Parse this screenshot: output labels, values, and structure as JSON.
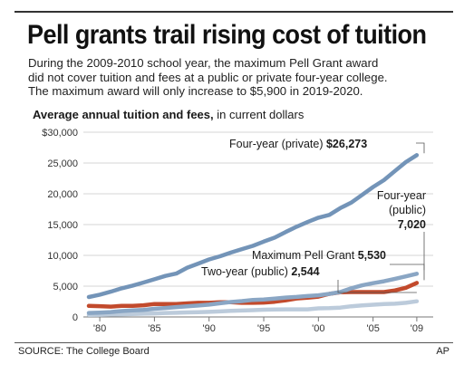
{
  "header": {
    "title": "Pell grants trail rising cost of tuition",
    "description_lines": [
      "During the 2009-2010 school year, the maximum Pell Grant award",
      "did not cover tuition and fees at a public or private four-year college.",
      "The maximum award will only increase to $5,900 in 2019-2020."
    ]
  },
  "chart_heading": {
    "bold": "Average annual tuition and fees,",
    "normal": " in current dollars"
  },
  "footer": {
    "source": "SOURCE: The College Board",
    "credit": "AP"
  },
  "colors": {
    "four_year_private": "#7394b8",
    "four_year_public": "#8aa6c4",
    "max_pell": "#c24a2c",
    "two_year_public": "#bccbdb",
    "grid": "#c8c8c8"
  },
  "chart_data": {
    "type": "line",
    "x_range": [
      1978.5,
      2010.5
    ],
    "ylim": [
      0,
      30000
    ],
    "y_ticks": [
      0,
      5000,
      10000,
      15000,
      20000,
      25000,
      30000
    ],
    "y_tick_labels": [
      "0",
      "5,000",
      "10,000",
      "15,000",
      "20,000",
      "25,000",
      "$30,000"
    ],
    "x_ticks": [
      1980,
      1985,
      1990,
      1995,
      2000,
      2005,
      2009
    ],
    "x_tick_labels": [
      "'80",
      "'85",
      "'90",
      "'95",
      "'00",
      "'05",
      "'09"
    ],
    "grid": "horizontal",
    "legend": "direct labels",
    "x": [
      1979,
      1980,
      1981,
      1982,
      1983,
      1984,
      1985,
      1986,
      1987,
      1988,
      1989,
      1990,
      1991,
      1992,
      1993,
      1994,
      1995,
      1996,
      1997,
      1998,
      1999,
      2000,
      2001,
      2002,
      2003,
      2004,
      2005,
      2006,
      2007,
      2008,
      2009
    ],
    "series": [
      {
        "name": "Four-year (private)",
        "end_label": "$26,273",
        "values": [
          3230,
          3620,
          4110,
          4640,
          5090,
          5590,
          6120,
          6660,
          7050,
          8000,
          8660,
          9340,
          9860,
          10450,
          11010,
          11550,
          12240,
          12880,
          13790,
          14650,
          15410,
          16120,
          16570,
          17680,
          18560,
          19830,
          21100,
          22220,
          23710,
          25140,
          26273
        ]
      },
      {
        "name": "Four-year (public)",
        "end_label": "7,020",
        "values": [
          650,
          700,
          800,
          950,
          1060,
          1140,
          1320,
          1460,
          1610,
          1730,
          1860,
          2000,
          2220,
          2420,
          2580,
          2770,
          2830,
          2980,
          3150,
          3250,
          3390,
          3510,
          3750,
          4050,
          4640,
          5130,
          5490,
          5800,
          6190,
          6590,
          7020
        ]
      },
      {
        "name": "Maximum Pell Grant",
        "end_label": "5,530",
        "values": [
          1800,
          1750,
          1670,
          1800,
          1800,
          1900,
          2100,
          2100,
          2100,
          2200,
          2300,
          2300,
          2400,
          2400,
          2300,
          2300,
          2340,
          2470,
          2700,
          3000,
          3125,
          3300,
          3750,
          4000,
          4050,
          4050,
          4050,
          4050,
          4310,
          4731,
          5530
        ]
      },
      {
        "name": "Two-year (public)",
        "end_label": "2,544",
        "values": [
          330,
          360,
          390,
          430,
          480,
          530,
          580,
          640,
          680,
          730,
          760,
          820,
          890,
          980,
          1050,
          1110,
          1170,
          1220,
          1240,
          1240,
          1230,
          1400,
          1430,
          1510,
          1730,
          1880,
          1980,
          2090,
          2140,
          2300,
          2544
        ]
      }
    ]
  }
}
